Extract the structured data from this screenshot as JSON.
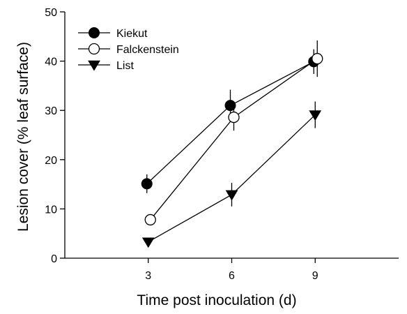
{
  "chart_data": {
    "type": "line",
    "title": "",
    "xlabel": "Time post inoculation (d)",
    "ylabel": "Lesion cover (% leaf surface)",
    "xlim": [
      0,
      12
    ],
    "ylim": [
      0,
      50
    ],
    "x_ticks": [
      3,
      6,
      9
    ],
    "y_ticks": [
      0,
      10,
      20,
      30,
      40,
      50
    ],
    "grid": false,
    "legend_position": "top-left",
    "series": [
      {
        "name": "Kiekut",
        "marker": "filled-circle",
        "x": [
          3,
          6,
          9
        ],
        "y": [
          15.1,
          31.0,
          39.9
        ],
        "error": [
          1.9,
          3.2,
          2.5
        ]
      },
      {
        "name": "Falckenstein",
        "marker": "open-circle",
        "x": [
          3,
          6,
          9
        ],
        "y": [
          7.8,
          28.6,
          40.5
        ],
        "error": [
          0.9,
          2.7,
          3.7
        ]
      },
      {
        "name": "List",
        "marker": "filled-triangle-down",
        "x": [
          3,
          6,
          9
        ],
        "y": [
          3.3,
          12.9,
          29.1
        ],
        "error": [
          0.6,
          2.4,
          2.7
        ]
      }
    ]
  }
}
